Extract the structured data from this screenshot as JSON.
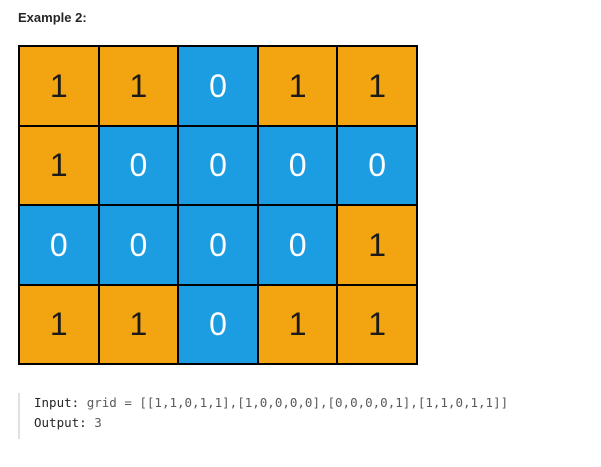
{
  "heading": "Example 2:",
  "colors": {
    "land": "#f2a411",
    "water": "#1c9de2",
    "border": "#000000"
  },
  "grid": {
    "rows": [
      [
        "1",
        "1",
        "0",
        "1",
        "1"
      ],
      [
        "1",
        "0",
        "0",
        "0",
        "0"
      ],
      [
        "0",
        "0",
        "0",
        "0",
        "1"
      ],
      [
        "1",
        "1",
        "0",
        "1",
        "1"
      ]
    ]
  },
  "example": {
    "input_label": "Input:",
    "input_value": "grid = [[1,1,0,1,1],[1,0,0,0,0],[0,0,0,0,1],[1,1,0,1,1]]",
    "output_label": "Output:",
    "output_value": "3"
  }
}
